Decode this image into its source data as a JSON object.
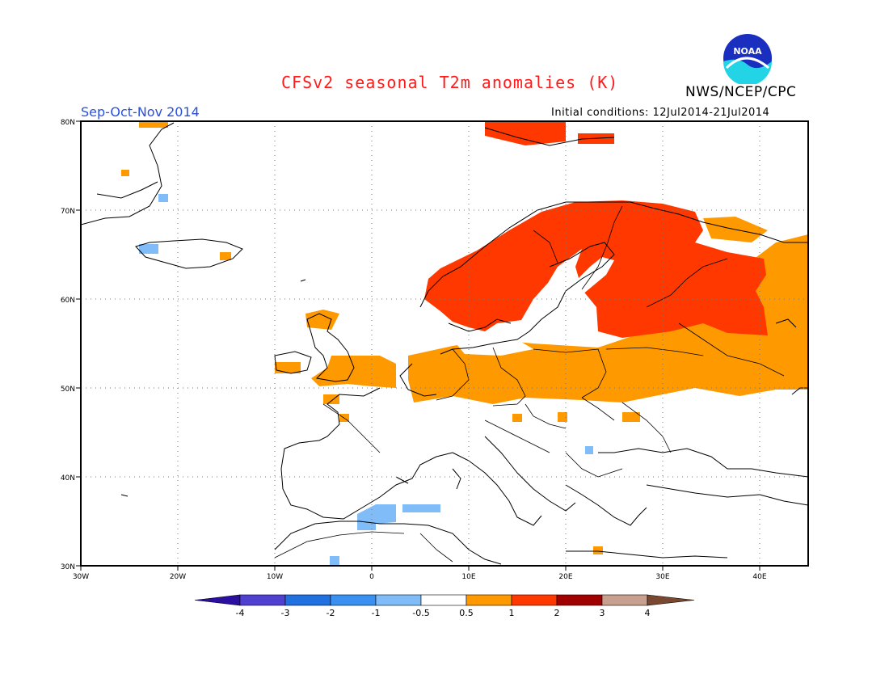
{
  "header": {
    "title": "CFSv2 seasonal T2m anomalies (K)",
    "org": "NWS/NCEP/CPC",
    "logo_text": "NOAA",
    "season": "Sep-Oct-Nov 2014",
    "initial_conditions": "Initial conditions: 12Jul2014-21Jul2014"
  },
  "map": {
    "lon_labels": [
      "30W",
      "20W",
      "10W",
      "0",
      "10E",
      "20E",
      "30E",
      "40E"
    ],
    "lat_labels": [
      "80N",
      "70N",
      "60N",
      "50N",
      "40N",
      "30N"
    ],
    "lon_range": [
      -30,
      45
    ],
    "lat_range": [
      30,
      80
    ],
    "grid": "dotted"
  },
  "colorbar": {
    "labels": [
      "-4",
      "-3",
      "-2",
      "-1",
      "-0.5",
      "0.5",
      "1",
      "2",
      "3",
      "4"
    ],
    "colors": [
      "#2a0fa0",
      "#5040d0",
      "#2070e0",
      "#3a90f0",
      "#80bdf8",
      "#ffffff",
      "#ff9900",
      "#ff3800",
      "#a00000",
      "#c8a090",
      "#7a4830"
    ]
  }
}
